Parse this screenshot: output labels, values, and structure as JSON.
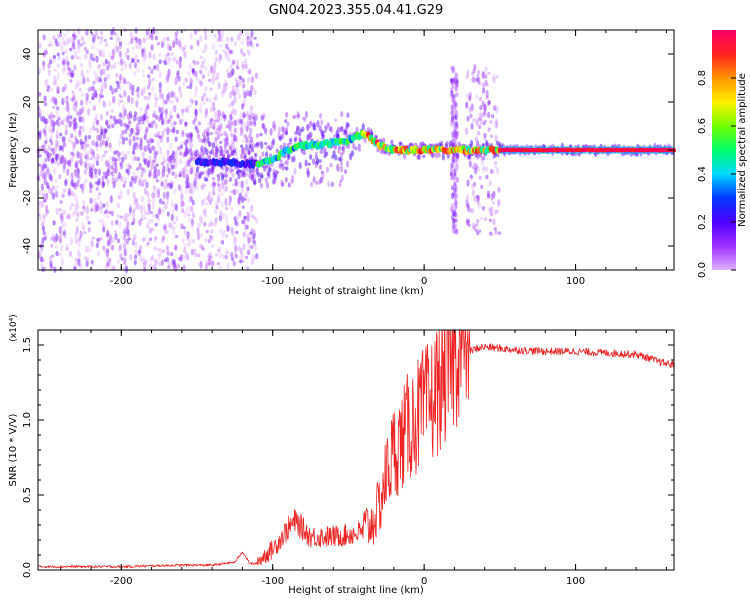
{
  "title": "GN04.2023.355.04.41.G29",
  "chart_data": [
    {
      "type": "heatmap",
      "xlabel": "Height of straight line (km)",
      "ylabel": "Frequency (Hz)",
      "xlim": [
        -255,
        165
      ],
      "ylim": [
        -50,
        50
      ],
      "xticks": [
        -200,
        -100,
        0,
        100
      ],
      "yticks": [
        -40,
        -20,
        0,
        20,
        40
      ],
      "colorbar": {
        "label": "Normalized spectral amplitude",
        "range": [
          0,
          1
        ],
        "ticks": [
          "0.0",
          "0.2",
          "0.4",
          "0.6",
          "0.8"
        ],
        "colormap": [
          "#e0b0ff",
          "#9e2fff",
          "#4e00ff",
          "#0038ff",
          "#00d7ff",
          "#00ff6a",
          "#74ff00",
          "#fff000",
          "#ff9400",
          "#ff1f1f",
          "#ff0067"
        ]
      },
      "trace": {
        "x": [
          -150,
          -130,
          -110,
          -100,
          -90,
          -80,
          -70,
          -60,
          -50,
          -40,
          -35,
          -30,
          -20,
          -10,
          0,
          10,
          20,
          30,
          40,
          50,
          60,
          100,
          165
        ],
        "freq": [
          -5,
          -5,
          -6,
          -4,
          0,
          2,
          2,
          3,
          4,
          7,
          5,
          2,
          0,
          0,
          0,
          0,
          0,
          0,
          0,
          0,
          0,
          0,
          0
        ]
      },
      "noise_band_x": [
        -255,
        -110
      ],
      "burst_x": [
        [
          18,
          22
        ],
        [
          28,
          50
        ]
      ]
    },
    {
      "type": "line",
      "xlabel": "Height of straight line (km)",
      "ylabel": "SNR (10 * V/V)",
      "y_multiplier": "(x10⁴)",
      "xlim": [
        -255,
        165
      ],
      "ylim": [
        0,
        1.6
      ],
      "xticks": [
        -200,
        -100,
        0,
        100
      ],
      "yticks": [
        "0.0",
        "0.5",
        "1.0",
        "1.5"
      ],
      "color": "#ee2222",
      "series": [
        {
          "x": [
            -255,
            -200,
            -160,
            -140,
            -125,
            -120,
            -115,
            -110,
            -100,
            -90,
            -85,
            -75,
            -60,
            -45,
            -35,
            -30,
            -25,
            -20,
            -15,
            -10,
            -5,
            0,
            5,
            10,
            15,
            20,
            25,
            30,
            35,
            40,
            50,
            60,
            80,
            100,
            120,
            140,
            150,
            155,
            165
          ],
          "values": [
            0.02,
            0.02,
            0.03,
            0.03,
            0.05,
            0.12,
            0.04,
            0.04,
            0.12,
            0.25,
            0.3,
            0.2,
            0.2,
            0.22,
            0.25,
            0.35,
            0.55,
            0.7,
            0.75,
            0.85,
            0.9,
            0.95,
            1.0,
            1.1,
            1.2,
            1.3,
            1.4,
            1.45,
            1.47,
            1.48,
            1.47,
            1.46,
            1.45,
            1.45,
            1.44,
            1.43,
            1.4,
            1.38,
            1.36
          ]
        }
      ]
    }
  ]
}
